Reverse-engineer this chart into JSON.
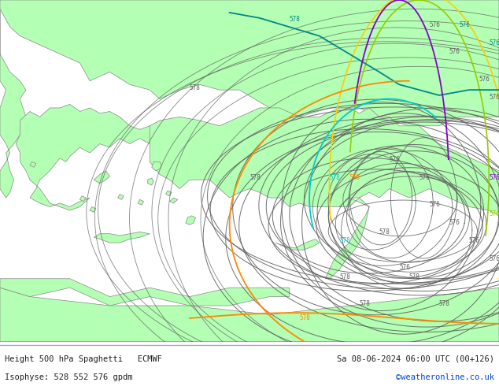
{
  "title_left": "Height 500 hPa Spaghetti   ECMWF",
  "title_right": "Sa 08-06-2024 06:00 UTC (00+126)",
  "subtitle_left": "Isophyse: 528 552 576 gpdm",
  "subtitle_right": "©weatheronline.co.uk",
  "land_color": "#b3ffb3",
  "sea_color": "#d8d8d8",
  "border_color": "#888888",
  "footer_bg": "#e0e0e0",
  "gray_contour": "#606060",
  "cyan_color": "#00cccc",
  "orange_color": "#ff8800",
  "purple_color": "#8800cc",
  "yellow_green_color": "#99cc00",
  "yellow_color": "#ffcc00",
  "teal_color": "#008888",
  "fig_width": 6.34,
  "fig_height": 4.9,
  "dpi": 100,
  "lon_min": 18.5,
  "lon_max": 43.5,
  "lat_min": 29.5,
  "lat_max": 48.5
}
